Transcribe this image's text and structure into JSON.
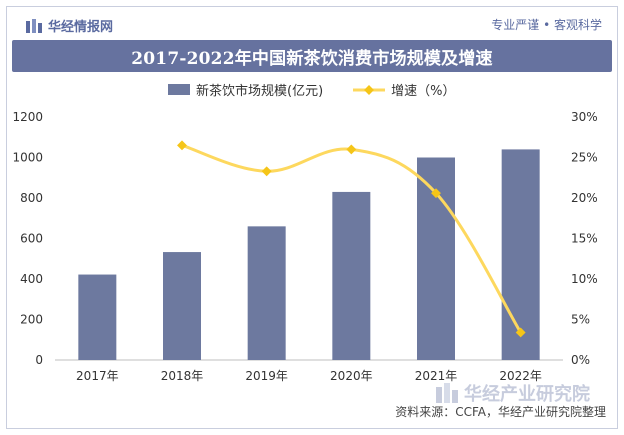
{
  "header": {
    "brand_name": "华经情报网",
    "slogan": "专业严谨 • 客观科学"
  },
  "chart_data": {
    "type": "bar",
    "title": "2017-2022年中国新茶饮消费市场规模及增速",
    "categories": [
      "2017年",
      "2018年",
      "2019年",
      "2020年",
      "2021年",
      "2022年"
    ],
    "series": [
      {
        "name": "新茶饮市场规模(亿元)",
        "kind": "bar",
        "axis": "left",
        "values": [
          422,
          533,
          660,
          830,
          1000,
          1040
        ]
      },
      {
        "name": "增速（%）",
        "kind": "line",
        "axis": "right",
        "values": [
          null,
          26.5,
          23.3,
          26.0,
          20.6,
          3.4
        ]
      }
    ],
    "y_left": {
      "min": 0,
      "max": 1200,
      "ticks": [
        0,
        200,
        400,
        600,
        800,
        1000,
        1200
      ]
    },
    "y_right": {
      "min": 0,
      "max": 30,
      "ticks": [
        "0%",
        "5%",
        "10%",
        "15%",
        "20%",
        "25%",
        "30%"
      ]
    },
    "colors": {
      "bar": "#6d799f",
      "line": "#fdd85e",
      "marker": "#f5c518"
    }
  },
  "footer": {
    "source": "资料来源：CCFA，华经产业研究院整理",
    "watermark": "华经产业研究院"
  }
}
